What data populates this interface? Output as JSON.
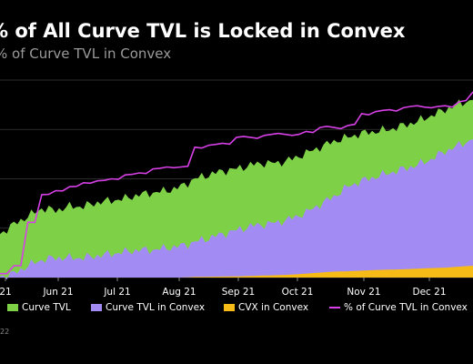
{
  "title": "% of All Curve TVL is Locked in Convex",
  "subtitle": "% of Curve TVL in Convex",
  "source": "22",
  "colors": {
    "curve_tvl": "#7ed047",
    "curve_tvl_convex": "#a28cf3",
    "cvx_convex": "#f7bb17",
    "pct_line": "#d640e6",
    "grid": "#3a3a3a",
    "tick": "#ffffff"
  },
  "chart_data": {
    "type": "area",
    "title": "% of All Curve TVL is Locked in Convex",
    "subtitle": "% of Curve TVL in Convex",
    "x_ticks": [
      "21",
      "Jun 21",
      "Jul 21",
      "Aug 21",
      "Sep 21",
      "Oct 21",
      "Nov 21",
      "Dec 21"
    ],
    "x": [
      "May 01",
      "May 08",
      "May 15",
      "May 22",
      "May 29",
      "Jun 05",
      "Jun 12",
      "Jun 19",
      "Jun 26",
      "Jul 03",
      "Jul 10",
      "Jul 17",
      "Jul 24",
      "Jul 31",
      "Aug 07",
      "Aug 14",
      "Aug 21",
      "Aug 28",
      "Sep 04",
      "Sep 11",
      "Sep 18",
      "Sep 25",
      "Oct 02",
      "Oct 09",
      "Oct 16",
      "Oct 23",
      "Oct 30",
      "Nov 06",
      "Nov 13",
      "Nov 20",
      "Nov 27",
      "Dec 04",
      "Dec 11",
      "Dec 18",
      "Dec 25"
    ],
    "ylim": [
      0,
      100
    ],
    "grid": true,
    "legend_position": "bottom",
    "series": [
      {
        "name": "Curve TVL",
        "kind": "area",
        "values": [
          22,
          27,
          31,
          35,
          34,
          36,
          36,
          38,
          39,
          40,
          42,
          43,
          44,
          46,
          50,
          52,
          54,
          55,
          57,
          58,
          58,
          60,
          63,
          66,
          69,
          71,
          73,
          74,
          75,
          77,
          79,
          82,
          85,
          88,
          90
        ]
      },
      {
        "name": "Curve TVL in Convex",
        "kind": "area",
        "values": [
          0.5,
          2,
          6,
          9,
          10,
          10,
          10,
          11,
          12,
          13,
          14,
          14,
          15,
          16,
          18,
          20,
          22,
          24,
          26,
          27,
          28,
          30,
          33,
          37,
          41,
          46,
          49,
          51,
          53,
          55,
          57,
          60,
          64,
          67,
          70
        ]
      },
      {
        "name": "CVX in Convex",
        "kind": "area",
        "values": [
          0,
          0,
          0,
          0,
          0,
          0,
          0,
          0,
          0,
          0,
          0,
          0,
          0,
          0,
          0.3,
          0.4,
          0.5,
          0.6,
          0.8,
          1.0,
          1.2,
          1.5,
          2.0,
          2.5,
          3.0,
          3.2,
          3.5,
          3.8,
          4.0,
          4.2,
          4.5,
          4.8,
          5.0,
          5.5,
          6.0
        ]
      },
      {
        "name": "% of Curve TVL in Convex",
        "kind": "line",
        "values": [
          2,
          6,
          28,
          42,
          44,
          46,
          48,
          49,
          50,
          52,
          53,
          55,
          56,
          56,
          66,
          67,
          68,
          71,
          71,
          72,
          73,
          72,
          74,
          76,
          76,
          77,
          83,
          84,
          85,
          86,
          87,
          86,
          87,
          89,
          94
        ]
      }
    ]
  }
}
